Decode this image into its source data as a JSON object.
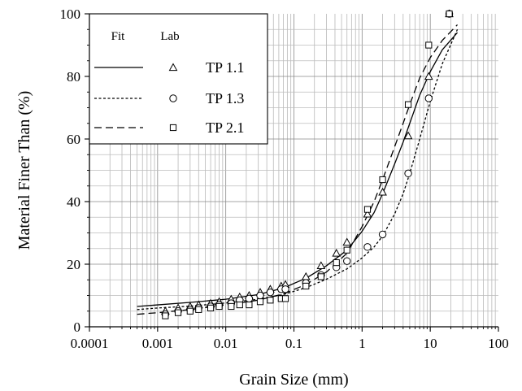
{
  "chart_data": {
    "type": "line",
    "title": "",
    "xlabel": "Grain Size (mm)",
    "ylabel": "Material Finer Than (%)",
    "x_scale": "log",
    "xlim": [
      0.0001,
      100
    ],
    "ylim": [
      0,
      100
    ],
    "x_tick_labels": [
      "0.0001",
      "0.001",
      "0.01",
      "0.1",
      "1",
      "10",
      "100"
    ],
    "y_tick_labels": [
      "0",
      "20",
      "40",
      "60",
      "80",
      "100"
    ],
    "grid": true,
    "legend": {
      "placement": "top-left",
      "header_fit": "Fit",
      "header_lab": "Lab"
    },
    "series": [
      {
        "name": "TP 1.1",
        "fit_style": "solid",
        "marker": "triangle",
        "fit_curve": {
          "x": [
            0.0005,
            0.001,
            0.003,
            0.01,
            0.03,
            0.07,
            0.15,
            0.3,
            0.6,
            1.0,
            1.5,
            2.0,
            3.0,
            4.0,
            5.0,
            7.0,
            10.0,
            15.0,
            25.0
          ],
          "y": [
            6.5,
            7.0,
            7.8,
            8.8,
            10.3,
            12.4,
            15.5,
            19.5,
            24.5,
            30.5,
            36.5,
            42.5,
            52.0,
            59.0,
            65.0,
            74.0,
            81.5,
            88.5,
            94.0
          ]
        },
        "lab_points": {
          "x": [
            0.0013,
            0.002,
            0.003,
            0.004,
            0.006,
            0.008,
            0.012,
            0.016,
            0.022,
            0.032,
            0.045,
            0.065,
            0.075,
            0.15,
            0.25,
            0.42,
            0.6,
            1.2,
            2.0,
            4.75,
            9.5,
            19.0
          ],
          "y": [
            5.0,
            6.0,
            6.5,
            7.0,
            7.5,
            8.0,
            8.8,
            9.5,
            10.0,
            11.0,
            12.0,
            13.0,
            13.5,
            16.0,
            19.5,
            23.5,
            27.0,
            36.0,
            43.0,
            61.0,
            80.0,
            100.0
          ]
        }
      },
      {
        "name": "TP 1.3",
        "fit_style": "dotted",
        "marker": "circle",
        "fit_curve": {
          "x": [
            0.0005,
            0.001,
            0.003,
            0.01,
            0.03,
            0.07,
            0.15,
            0.3,
            0.6,
            1.0,
            1.5,
            2.0,
            3.0,
            4.0,
            5.0,
            7.0,
            10.0,
            15.0,
            25.0
          ],
          "y": [
            5.5,
            6.0,
            6.6,
            7.6,
            8.8,
            10.3,
            12.5,
            15.2,
            18.5,
            22.0,
            25.5,
            29.0,
            36.0,
            42.5,
            49.0,
            60.0,
            72.0,
            84.0,
            95.0
          ]
        },
        "lab_points": {
          "x": [
            0.0013,
            0.002,
            0.003,
            0.004,
            0.006,
            0.008,
            0.012,
            0.016,
            0.022,
            0.032,
            0.045,
            0.065,
            0.075,
            0.15,
            0.25,
            0.42,
            0.6,
            1.2,
            2.0,
            4.75,
            9.5,
            19.0
          ],
          "y": [
            4.0,
            5.0,
            5.5,
            6.0,
            6.5,
            7.0,
            7.5,
            8.5,
            9.0,
            10.0,
            11.0,
            12.0,
            12.0,
            14.0,
            16.5,
            19.0,
            21.0,
            25.5,
            29.5,
            49.0,
            73.0,
            100.0
          ]
        }
      },
      {
        "name": "TP 2.1",
        "fit_style": "dashed",
        "marker": "square",
        "fit_curve": {
          "x": [
            0.0005,
            0.001,
            0.003,
            0.01,
            0.03,
            0.07,
            0.15,
            0.3,
            0.6,
            1.0,
            1.5,
            2.0,
            3.0,
            4.0,
            5.0,
            7.0,
            10.0,
            15.0,
            25.0
          ],
          "y": [
            4.0,
            4.5,
            5.5,
            7.0,
            8.5,
            10.5,
            13.5,
            17.5,
            23.5,
            32.0,
            40.0,
            47.0,
            57.5,
            65.0,
            71.0,
            79.5,
            86.0,
            91.5,
            96.5
          ]
        },
        "lab_points": {
          "x": [
            0.0013,
            0.002,
            0.003,
            0.004,
            0.006,
            0.008,
            0.012,
            0.016,
            0.022,
            0.032,
            0.045,
            0.065,
            0.075,
            0.15,
            0.25,
            0.42,
            0.6,
            1.2,
            2.0,
            4.75,
            9.5,
            19.0
          ],
          "y": [
            3.5,
            4.5,
            5.0,
            5.5,
            6.0,
            6.5,
            6.5,
            7.0,
            7.0,
            8.0,
            8.5,
            9.0,
            9.0,
            13.0,
            16.0,
            20.5,
            24.5,
            37.5,
            47.0,
            71.0,
            90.0,
            100.0
          ]
        }
      }
    ]
  }
}
